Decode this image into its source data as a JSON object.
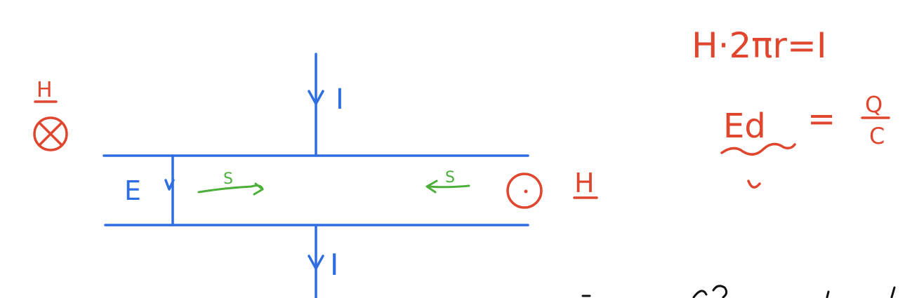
{
  "labels": {
    "current_top": "I",
    "current_bottom": "I",
    "e_field": "E",
    "h_left": "H",
    "h_right": "H",
    "poynting_left": "S",
    "poynting_right": "S"
  },
  "equations": {
    "ampere": "H·2πr=I",
    "capacitor_lhs": "Ed",
    "capacitor_eq": "=",
    "capacitor_num": "Q",
    "capacitor_den": "C"
  },
  "colors": {
    "blue": "#2f6ee0",
    "red": "#e0452e",
    "green": "#4caf3a",
    "black": "#111111"
  }
}
